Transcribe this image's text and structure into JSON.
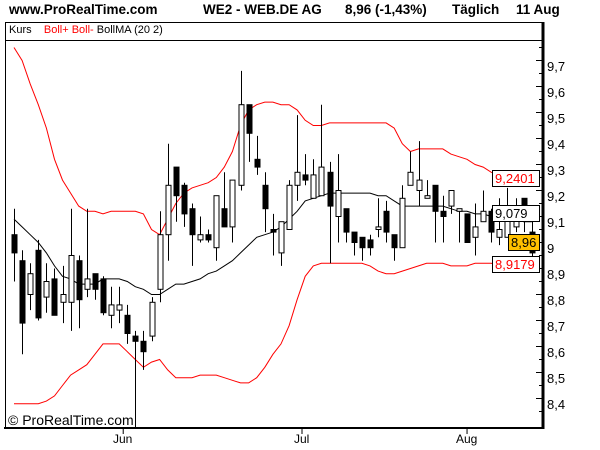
{
  "header": {
    "site": "www.ProRealTime.com",
    "instrument": "WE2 - WEB.DE AG",
    "price_change": "8,96 (-1,43%)",
    "period": "Täglich",
    "date": "11 Aug"
  },
  "legend": {
    "kurs": "Kurs",
    "boll_plus": "Boll+",
    "boll_minus": "Boll-",
    "bollma": "BollMA (20 2)"
  },
  "copyright": "© ProRealTime.com",
  "value_labels": {
    "upper": "9,2401",
    "middle": "9,079",
    "last": "8,96",
    "lower": "8,9179"
  },
  "colors": {
    "band": "#ff0000",
    "ma": "#000000",
    "last_price_bg": "#ffc000",
    "up_candle": "#ffffff",
    "down_candle": "#000000"
  },
  "chart_data": {
    "type": "candlestick",
    "y_axis": {
      "position": "right",
      "ylim": [
        8.3,
        9.8
      ],
      "ticks": [
        "9,7",
        "9,6",
        "9,5",
        "9,4",
        "9,3",
        "9,2",
        "9,1",
        "9",
        "8,9",
        "8,8",
        "8,7",
        "8,6",
        "8,5",
        "8,4"
      ],
      "tick_values": [
        9.7,
        9.6,
        9.5,
        9.4,
        9.3,
        9.2,
        9.1,
        9.0,
        8.9,
        8.8,
        8.7,
        8.6,
        8.5,
        8.4
      ]
    },
    "x_axis": {
      "labels": [
        {
          "text": "Jun",
          "index": 13.5
        },
        {
          "text": "Jul",
          "index": 35.6
        },
        {
          "text": "Aug",
          "index": 56
        }
      ]
    },
    "ohlc": [
      [
        9.03,
        9.13,
        8.85,
        8.96
      ],
      [
        8.93,
        8.97,
        8.57,
        8.69
      ],
      [
        8.8,
        8.92,
        8.74,
        8.88
      ],
      [
        8.97,
        9.01,
        8.7,
        8.71
      ],
      [
        8.79,
        8.92,
        8.73,
        8.85
      ],
      [
        8.86,
        8.9,
        8.72,
        8.72
      ],
      [
        8.77,
        8.91,
        8.69,
        8.8
      ],
      [
        8.77,
        9.13,
        8.66,
        8.95
      ],
      [
        8.93,
        8.95,
        8.67,
        8.78
      ],
      [
        8.82,
        9.13,
        8.79,
        8.86
      ],
      [
        8.88,
        8.88,
        8.78,
        8.82
      ],
      [
        8.86,
        8.87,
        8.72,
        8.73
      ],
      [
        8.72,
        8.83,
        8.67,
        8.76
      ],
      [
        8.74,
        8.83,
        8.69,
        8.76
      ],
      [
        8.72,
        8.76,
        8.61,
        8.65
      ],
      [
        8.64,
        8.66,
        8.29,
        8.62
      ],
      [
        8.62,
        8.66,
        8.51,
        8.58
      ],
      [
        8.64,
        8.79,
        8.62,
        8.77
      ],
      [
        8.82,
        9.12,
        8.77,
        9.03
      ],
      [
        9.03,
        9.38,
        8.93,
        9.22
      ],
      [
        9.29,
        9.29,
        9.08,
        9.18
      ],
      [
        9.22,
        9.23,
        9.06,
        9.11
      ],
      [
        9.13,
        9.15,
        8.91,
        9.03
      ],
      [
        9.01,
        9.1,
        9.0,
        9.03
      ],
      [
        9.03,
        9.05,
        9.0,
        9.01
      ],
      [
        8.98,
        9.18,
        8.93,
        9.18
      ],
      [
        9.13,
        9.27,
        9.06,
        9.06
      ],
      [
        9.06,
        9.24,
        9.0,
        9.24
      ],
      [
        9.22,
        9.66,
        9.2,
        9.53
      ],
      [
        9.53,
        9.53,
        9.31,
        9.42
      ],
      [
        9.32,
        9.41,
        9.26,
        9.29
      ],
      [
        9.22,
        9.27,
        9.04,
        9.13
      ],
      [
        9.05,
        9.11,
        8.95,
        9.04
      ],
      [
        8.96,
        9.08,
        8.91,
        9.08
      ],
      [
        9.05,
        9.24,
        9.05,
        9.22
      ],
      [
        9.22,
        9.49,
        9.16,
        9.27
      ],
      [
        9.26,
        9.34,
        9.22,
        9.24
      ],
      [
        9.17,
        9.32,
        9.17,
        9.26
      ],
      [
        9.18,
        9.53,
        9.18,
        9.29
      ],
      [
        9.27,
        9.31,
        8.92,
        9.14
      ],
      [
        9.1,
        9.34,
        9.0,
        9.2
      ],
      [
        9.13,
        9.13,
        9.0,
        9.04
      ],
      [
        9.04,
        9.04,
        8.95,
        9.0
      ],
      [
        9.02,
        9.02,
        8.93,
        8.98
      ],
      [
        9.01,
        9.03,
        8.95,
        8.98
      ],
      [
        9.05,
        9.17,
        9.02,
        9.06
      ],
      [
        9.12,
        9.16,
        9.0,
        9.04
      ],
      [
        9.03,
        9.03,
        8.93,
        8.98
      ],
      [
        8.98,
        9.22,
        8.98,
        9.17
      ],
      [
        9.22,
        9.35,
        9.22,
        9.27
      ],
      [
        9.2,
        9.39,
        9.14,
        9.24
      ],
      [
        9.17,
        9.24,
        9.17,
        9.18
      ],
      [
        9.22,
        9.22,
        9.0,
        9.12
      ],
      [
        9.12,
        9.18,
        9.0,
        9.1
      ],
      [
        9.14,
        9.2,
        9.11,
        9.2
      ],
      [
        9.12,
        9.13,
        9.0,
        9.13
      ],
      [
        9.11,
        9.11,
        9.0,
        9.0
      ],
      [
        9.02,
        9.15,
        8.95,
        9.06
      ],
      [
        9.08,
        9.2,
        9.08,
        9.12
      ],
      [
        9.12,
        9.13,
        9.0,
        9.04
      ],
      [
        9.02,
        9.17,
        8.99,
        9.05
      ],
      [
        9.02,
        9.21,
        9.02,
        9.12
      ],
      [
        9.06,
        9.17,
        9.04,
        9.14
      ],
      [
        9.17,
        9.17,
        9.04,
        9.12
      ],
      [
        9.04,
        9.08,
        8.93,
        8.96
      ]
    ],
    "series": [
      {
        "name": "Boll+",
        "values": [
          9.75,
          9.7,
          9.61,
          9.53,
          9.44,
          9.32,
          9.24,
          9.19,
          9.14,
          9.12,
          9.12,
          9.11,
          9.12,
          9.12,
          9.12,
          9.12,
          9.11,
          9.05,
          9.03,
          9.09,
          9.15,
          9.19,
          9.21,
          9.22,
          9.23,
          9.25,
          9.29,
          9.35,
          9.45,
          9.51,
          9.53,
          9.54,
          9.54,
          9.53,
          9.53,
          9.51,
          9.47,
          9.45,
          9.45,
          9.46,
          9.46,
          9.46,
          9.46,
          9.46,
          9.46,
          9.46,
          9.46,
          9.44,
          9.38,
          9.35,
          9.36,
          9.36,
          9.36,
          9.36,
          9.34,
          9.33,
          9.32,
          9.3,
          9.29,
          9.27,
          9.26,
          9.25,
          9.25,
          9.24,
          9.24
        ]
      },
      {
        "name": "BollMA (20 2)",
        "values": [
          9.09,
          9.06,
          9.03,
          9.0,
          8.96,
          8.91,
          8.87,
          8.86,
          8.84,
          8.84,
          8.84,
          8.86,
          8.86,
          8.86,
          8.85,
          8.83,
          8.82,
          8.8,
          8.8,
          8.82,
          8.84,
          8.84,
          8.85,
          8.86,
          8.88,
          8.89,
          8.91,
          8.93,
          8.96,
          8.99,
          9.02,
          9.03,
          9.04,
          9.06,
          9.09,
          9.12,
          9.16,
          9.17,
          9.18,
          9.19,
          9.19,
          9.19,
          9.19,
          9.19,
          9.19,
          9.18,
          9.18,
          9.16,
          9.14,
          9.14,
          9.14,
          9.14,
          9.14,
          9.14,
          9.13,
          9.12,
          9.12,
          9.11,
          9.11,
          9.1,
          9.09,
          9.09,
          9.09,
          9.08,
          9.08
        ]
      },
      {
        "name": "Boll-",
        "values": [
          8.38,
          8.38,
          8.38,
          8.38,
          8.39,
          8.41,
          8.45,
          8.49,
          8.51,
          8.53,
          8.57,
          8.61,
          8.61,
          8.61,
          8.58,
          8.55,
          8.52,
          8.54,
          8.55,
          8.51,
          8.48,
          8.48,
          8.48,
          8.49,
          8.49,
          8.49,
          8.48,
          8.47,
          8.46,
          8.46,
          8.48,
          8.52,
          8.57,
          8.61,
          8.68,
          8.78,
          8.87,
          8.91,
          8.92,
          8.92,
          8.92,
          8.92,
          8.92,
          8.92,
          8.91,
          8.89,
          8.88,
          8.88,
          8.89,
          8.9,
          8.91,
          8.92,
          8.92,
          8.92,
          8.91,
          8.91,
          8.91,
          8.92,
          8.92,
          8.92,
          8.91,
          8.91,
          8.92,
          8.92,
          8.92
        ]
      }
    ]
  }
}
